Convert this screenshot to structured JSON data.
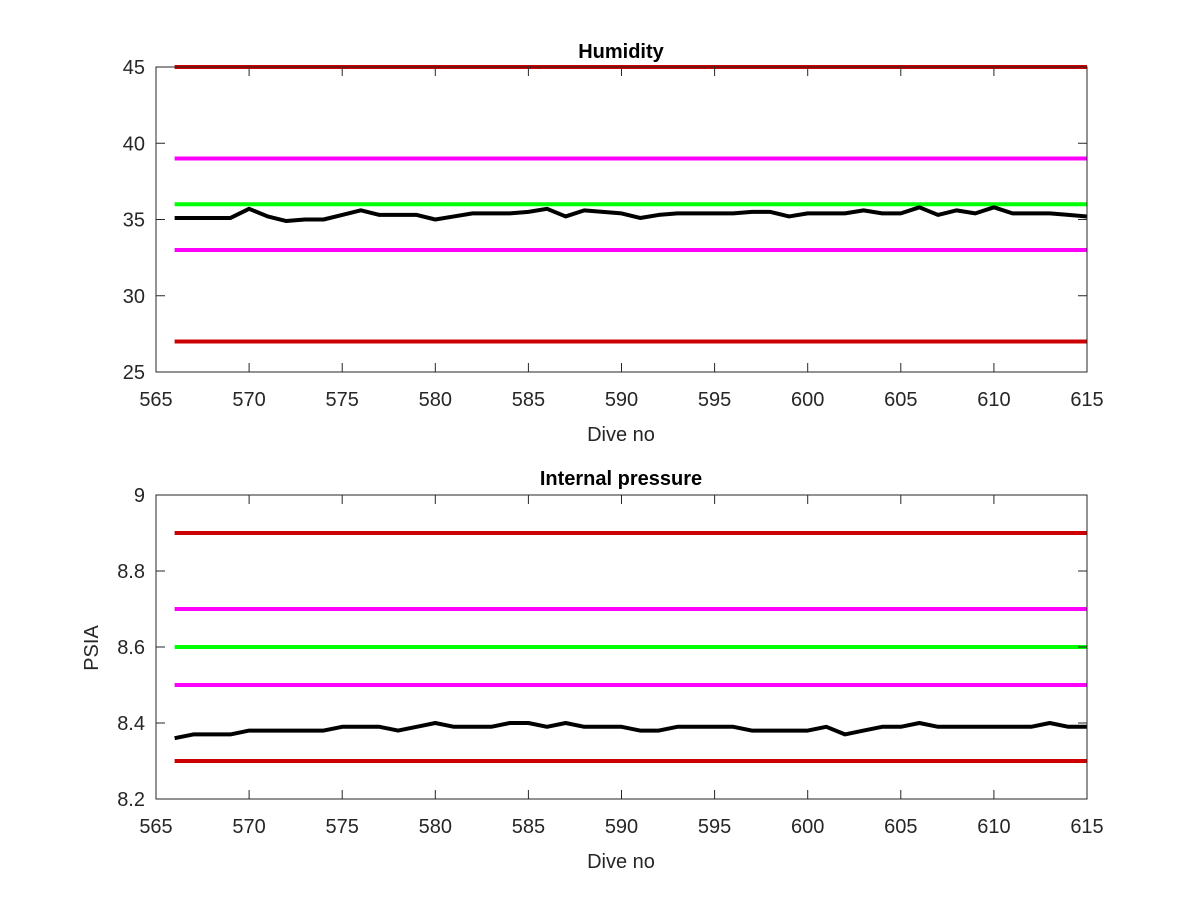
{
  "chart_data": [
    {
      "type": "line",
      "title": "Humidity",
      "xlabel": "Dive no",
      "ylabel": "",
      "xlim": [
        565,
        615
      ],
      "ylim": [
        25,
        45
      ],
      "xticks": [
        565,
        570,
        575,
        580,
        585,
        590,
        595,
        600,
        605,
        610,
        615
      ],
      "yticks": [
        25,
        30,
        35,
        40,
        45
      ],
      "grid": false,
      "reference_lines": [
        {
          "y": 45,
          "color": "#cc0000"
        },
        {
          "y": 39,
          "color": "#ff00ff"
        },
        {
          "y": 36,
          "color": "#00ff00"
        },
        {
          "y": 33,
          "color": "#ff00ff"
        },
        {
          "y": 27,
          "color": "#cc0000"
        }
      ],
      "series": [
        {
          "color": "#000000",
          "x": [
            566,
            567,
            568,
            569,
            570,
            571,
            572,
            573,
            574,
            575,
            576,
            577,
            578,
            579,
            580,
            581,
            582,
            583,
            584,
            585,
            586,
            587,
            588,
            589,
            590,
            591,
            592,
            593,
            594,
            595,
            596,
            597,
            598,
            599,
            600,
            601,
            602,
            603,
            604,
            605,
            606,
            607,
            608,
            609,
            610,
            611,
            612,
            613,
            614,
            615
          ],
          "values": [
            35.1,
            35.1,
            35.1,
            35.1,
            35.7,
            35.2,
            34.9,
            35.0,
            35.0,
            35.3,
            35.6,
            35.3,
            35.3,
            35.3,
            35.0,
            35.2,
            35.4,
            35.4,
            35.4,
            35.5,
            35.7,
            35.2,
            35.6,
            35.5,
            35.4,
            35.1,
            35.3,
            35.4,
            35.4,
            35.4,
            35.4,
            35.5,
            35.5,
            35.2,
            35.4,
            35.4,
            35.4,
            35.6,
            35.4,
            35.4,
            35.8,
            35.3,
            35.6,
            35.4,
            35.8,
            35.4,
            35.4,
            35.4,
            35.3,
            35.2
          ]
        }
      ]
    },
    {
      "type": "line",
      "title": "Internal pressure",
      "xlabel": "Dive no",
      "ylabel": "PSIA",
      "xlim": [
        565,
        615
      ],
      "ylim": [
        8.2,
        9.0
      ],
      "xticks": [
        565,
        570,
        575,
        580,
        585,
        590,
        595,
        600,
        605,
        610,
        615
      ],
      "yticks": [
        8.2,
        8.4,
        8.6,
        8.8,
        9.0
      ],
      "ytick_labels": [
        "8.2",
        "8.4",
        "8.6",
        "8.8",
        "9"
      ],
      "grid": false,
      "reference_lines": [
        {
          "y": 8.9,
          "color": "#cc0000"
        },
        {
          "y": 8.7,
          "color": "#ff00ff"
        },
        {
          "y": 8.6,
          "color": "#00ff00"
        },
        {
          "y": 8.5,
          "color": "#ff00ff"
        },
        {
          "y": 8.3,
          "color": "#cc0000"
        }
      ],
      "series": [
        {
          "color": "#000000",
          "x": [
            566,
            567,
            568,
            569,
            570,
            571,
            572,
            573,
            574,
            575,
            576,
            577,
            578,
            579,
            580,
            581,
            582,
            583,
            584,
            585,
            586,
            587,
            588,
            589,
            590,
            591,
            592,
            593,
            594,
            595,
            596,
            597,
            598,
            599,
            600,
            601,
            602,
            603,
            604,
            605,
            606,
            607,
            608,
            609,
            610,
            611,
            612,
            613,
            614,
            615
          ],
          "values": [
            8.36,
            8.37,
            8.37,
            8.37,
            8.38,
            8.38,
            8.38,
            8.38,
            8.38,
            8.39,
            8.39,
            8.39,
            8.38,
            8.39,
            8.4,
            8.39,
            8.39,
            8.39,
            8.4,
            8.4,
            8.39,
            8.4,
            8.39,
            8.39,
            8.39,
            8.38,
            8.38,
            8.39,
            8.39,
            8.39,
            8.39,
            8.38,
            8.38,
            8.38,
            8.38,
            8.39,
            8.37,
            8.38,
            8.39,
            8.39,
            8.4,
            8.39,
            8.39,
            8.39,
            8.39,
            8.39,
            8.39,
            8.4,
            8.39,
            8.39
          ]
        }
      ]
    }
  ]
}
